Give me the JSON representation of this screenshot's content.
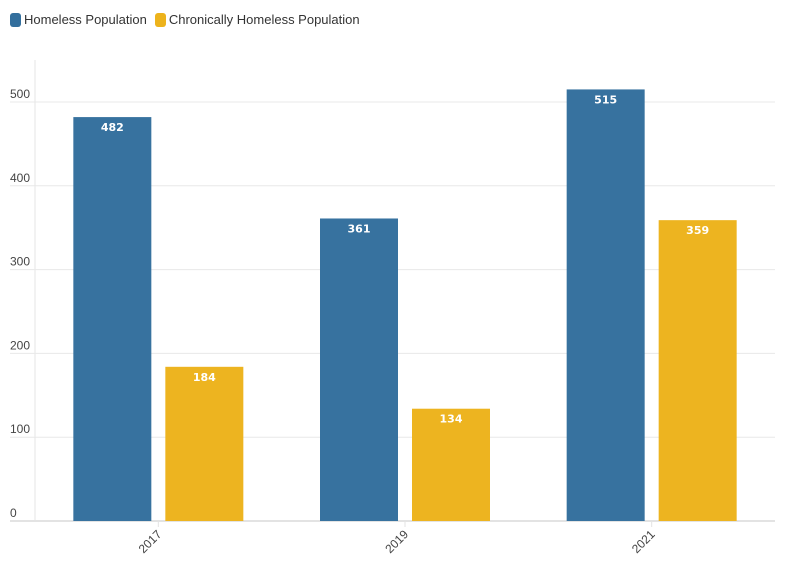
{
  "chart_data": {
    "type": "bar",
    "title": "",
    "xlabel": "",
    "ylabel": "",
    "categories": [
      "2017",
      "2019",
      "2021"
    ],
    "series": [
      {
        "name": "Homeless Population",
        "color": "#336f9d",
        "values": [
          482,
          361,
          515
        ]
      },
      {
        "name": "Chronically Homeless Population",
        "color": "#edb31c",
        "values": [
          184,
          134,
          359
        ]
      }
    ],
    "ylim": [
      0,
      550
    ],
    "yticks": [
      0,
      100,
      200,
      300,
      400,
      500
    ],
    "grid": true,
    "legend_position": "top-left",
    "data_labels": true
  }
}
